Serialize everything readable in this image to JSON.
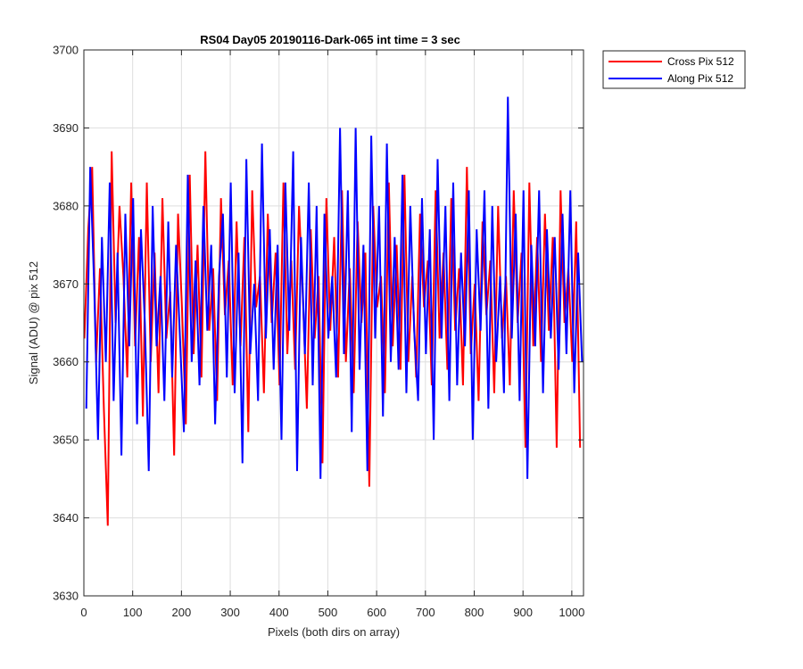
{
  "chart_data": {
    "type": "line",
    "title": "RS04 Day05 20190116-Dark-065 int time = 3 sec",
    "xlabel": "Pixels (both dirs on array)",
    "ylabel": "Signal (ADU) @ pix 512",
    "xlim": [
      0,
      1024
    ],
    "ylim": [
      3630,
      3700
    ],
    "xticks": [
      0,
      100,
      200,
      300,
      400,
      500,
      600,
      700,
      800,
      900,
      1000
    ],
    "yticks": [
      3630,
      3640,
      3650,
      3660,
      3670,
      3680,
      3690,
      3700
    ],
    "grid": true,
    "legend_position": "outside-top-right",
    "series": [
      {
        "name": "Cross Pix 512",
        "color": "#ff0000",
        "x_start": 1,
        "x_step": 8,
        "values": [
          3663,
          3677,
          3685,
          3660,
          3672,
          3654,
          3639,
          3687,
          3665,
          3680,
          3671,
          3658,
          3683,
          3662,
          3676,
          3653,
          3683,
          3660,
          3674,
          3656,
          3681,
          3663,
          3669,
          3648,
          3679,
          3667,
          3652,
          3684,
          3661,
          3675,
          3658,
          3687,
          3664,
          3672,
          3655,
          3681,
          3666,
          3673,
          3657,
          3678,
          3662,
          3676,
          3651,
          3682,
          3667,
          3671,
          3656,
          3679,
          3665,
          3674,
          3657,
          3683,
          3661,
          3673,
          3659,
          3680,
          3668,
          3654,
          3677,
          3663,
          3671,
          3647,
          3681,
          3664,
          3676,
          3658,
          3682,
          3660,
          3672,
          3656,
          3678,
          3665,
          3674,
          3644,
          3680,
          3667,
          3671,
          3656,
          3683,
          3662,
          3675,
          3659,
          3684,
          3660,
          3671,
          3658,
          3679,
          3667,
          3673,
          3657,
          3682,
          3663,
          3674,
          3659,
          3681,
          3664,
          3672,
          3657,
          3685,
          3661,
          3670,
          3655,
          3678,
          3666,
          3673,
          3656,
          3680,
          3663,
          3671,
          3657,
          3682,
          3665,
          3674,
          3649,
          3683,
          3662,
          3676,
          3660,
          3679,
          3664,
          3676,
          3649,
          3682,
          3665,
          3672,
          3660,
          3678,
          3649
        ]
      },
      {
        "name": "Along Pix 512",
        "color": "#0000ff",
        "x_start": 5,
        "x_step": 8,
        "values": [
          3654,
          3685,
          3670,
          3650,
          3676,
          3660,
          3683,
          3655,
          3674,
          3648,
          3679,
          3662,
          3681,
          3652,
          3677,
          3665,
          3646,
          3680,
          3662,
          3671,
          3655,
          3678,
          3658,
          3675,
          3663,
          3651,
          3684,
          3660,
          3673,
          3657,
          3680,
          3664,
          3675,
          3652,
          3671,
          3679,
          3658,
          3683,
          3656,
          3674,
          3647,
          3686,
          3661,
          3670,
          3655,
          3688,
          3663,
          3677,
          3659,
          3675,
          3650,
          3683,
          3664,
          3687,
          3646,
          3676,
          3661,
          3683,
          3657,
          3680,
          3645,
          3679,
          3663,
          3671,
          3658,
          3690,
          3661,
          3682,
          3651,
          3690,
          3659,
          3675,
          3646,
          3689,
          3663,
          3680,
          3653,
          3688,
          3660,
          3676,
          3659,
          3684,
          3656,
          3680,
          3664,
          3655,
          3681,
          3661,
          3677,
          3650,
          3686,
          3663,
          3680,
          3655,
          3683,
          3657,
          3674,
          3662,
          3682,
          3650,
          3677,
          3664,
          3682,
          3654,
          3680,
          3660,
          3671,
          3656,
          3694,
          3663,
          3679,
          3655,
          3682,
          3645,
          3675,
          3662,
          3682,
          3656,
          3677,
          3663,
          3676,
          3659,
          3679,
          3661,
          3682,
          3656,
          3674,
          3660
        ]
      }
    ]
  }
}
